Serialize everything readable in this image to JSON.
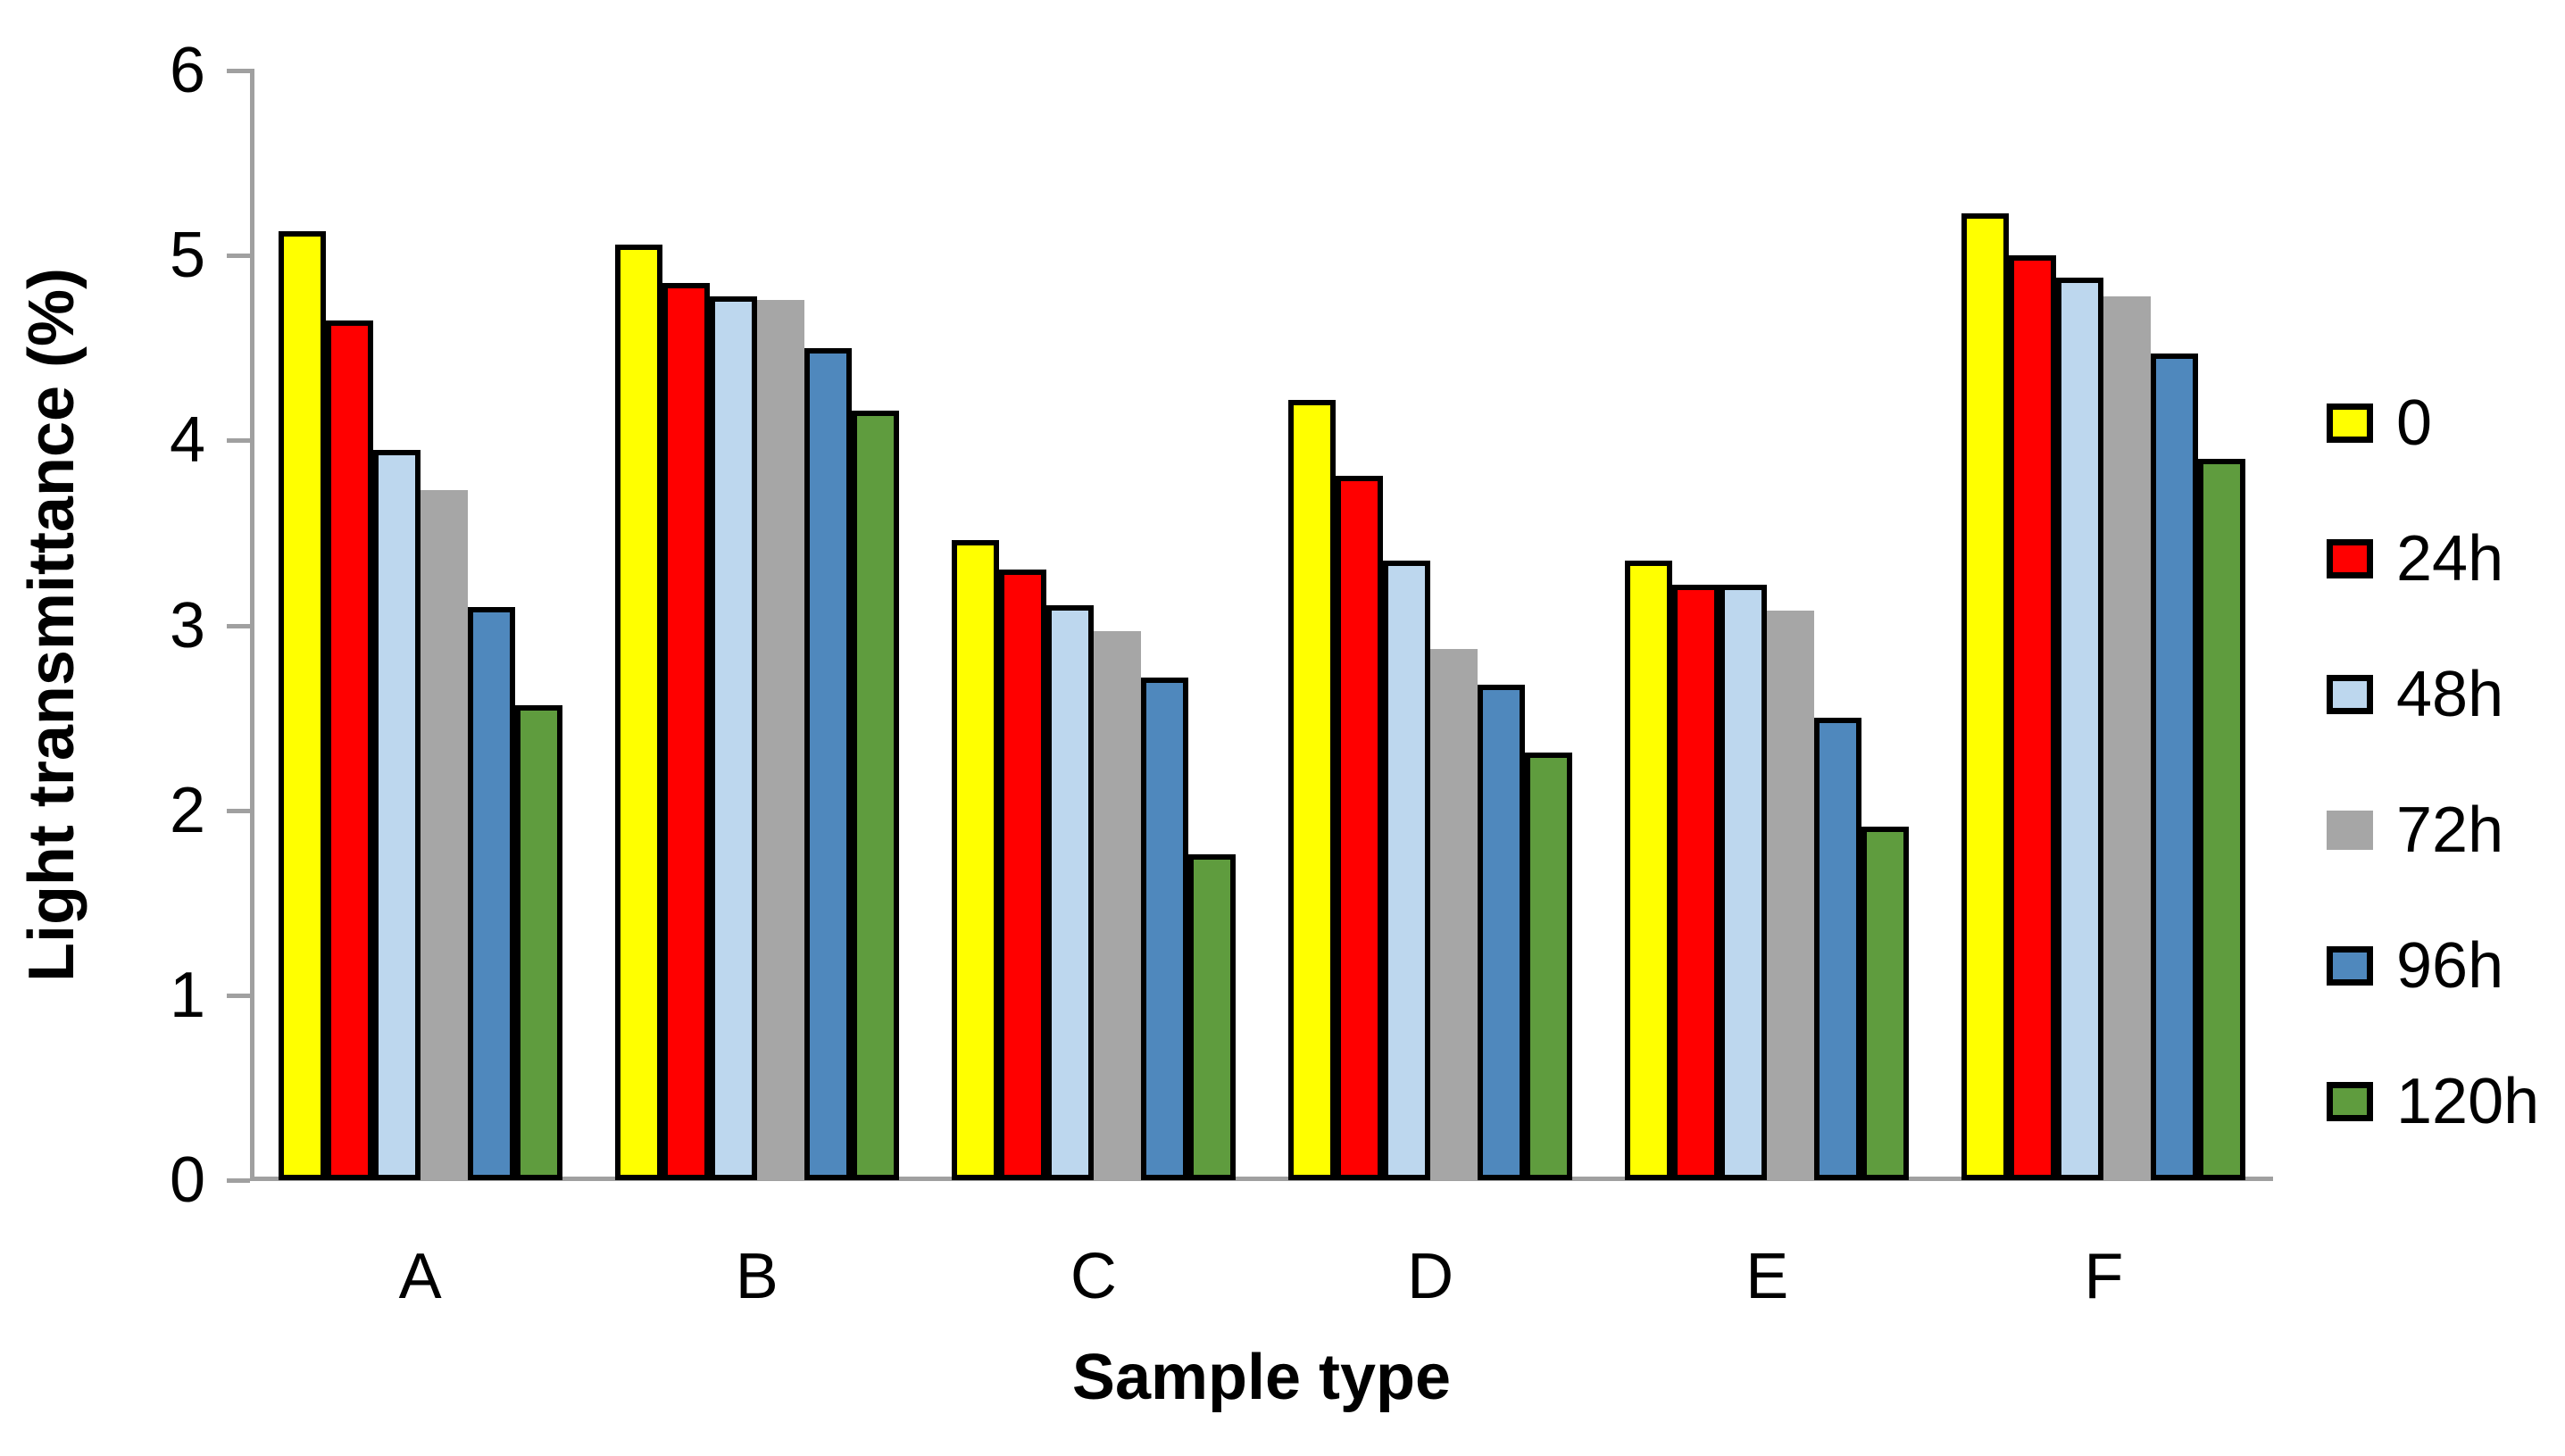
{
  "chart_data": {
    "type": "bar",
    "title": "",
    "xlabel": "Sample type",
    "ylabel": "Light transmittance (%)",
    "categories": [
      "A",
      "B",
      "C",
      "D",
      "E",
      "F"
    ],
    "series": [
      {
        "name": "0",
        "color": "#FFFF00",
        "outlined": true,
        "values": [
          5.13,
          5.06,
          3.46,
          4.22,
          3.35,
          5.23
        ]
      },
      {
        "name": "24h",
        "color": "#FF0000",
        "outlined": true,
        "values": [
          4.65,
          4.85,
          3.3,
          3.81,
          3.22,
          5.0
        ]
      },
      {
        "name": "48h",
        "color": "#BDD7EE",
        "outlined": true,
        "values": [
          3.95,
          4.78,
          3.11,
          3.35,
          3.22,
          4.88
        ]
      },
      {
        "name": "72h",
        "color": "#A6A6A6",
        "outlined": false,
        "values": [
          3.73,
          4.76,
          2.97,
          2.87,
          3.08,
          4.78
        ]
      },
      {
        "name": "96h",
        "color": "#4F88BD",
        "outlined": true,
        "values": [
          3.1,
          4.5,
          2.72,
          2.68,
          2.5,
          4.47
        ]
      },
      {
        "name": "120h",
        "color": "#5F9C3E",
        "outlined": true,
        "values": [
          2.57,
          4.16,
          1.76,
          2.31,
          1.91,
          3.9
        ]
      }
    ],
    "ylim": [
      0,
      6
    ],
    "y_ticks": [
      0,
      1,
      2,
      3,
      4,
      5,
      6
    ],
    "grid": false,
    "legend_position": "right",
    "outline_color": "#000000",
    "axis_color": "#A0A0A0"
  }
}
